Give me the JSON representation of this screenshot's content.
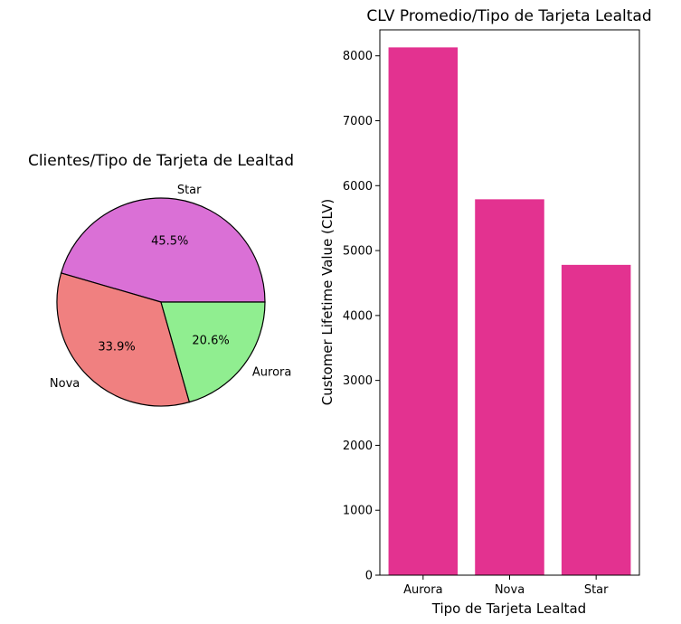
{
  "chart_data": [
    {
      "type": "pie",
      "title": "Clientes/Tipo de Tarjeta de Lealtad",
      "labels": [
        "Star",
        "Nova",
        "Aurora"
      ],
      "values": [
        45.5,
        33.9,
        20.6
      ],
      "percent_labels": [
        "45.5%",
        "33.9%",
        "20.6%"
      ],
      "colors": [
        "#da70d6",
        "#f08080",
        "#90ee90"
      ],
      "edgecolor": "#000000"
    },
    {
      "type": "bar",
      "title": "CLV Promedio/Tipo de Tarjeta Lealtad",
      "categories": [
        "Aurora",
        "Nova",
        "Star"
      ],
      "values": [
        8130,
        5790,
        4780
      ],
      "xlabel": "Tipo de Tarjeta Lealtad",
      "ylabel": "Customer Lifetime Value (CLV)",
      "ylim": [
        0,
        8400
      ],
      "yticks": [
        0,
        1000,
        2000,
        3000,
        4000,
        5000,
        6000,
        7000,
        8000
      ],
      "bar_color": "#e33290",
      "grid": false
    }
  ]
}
